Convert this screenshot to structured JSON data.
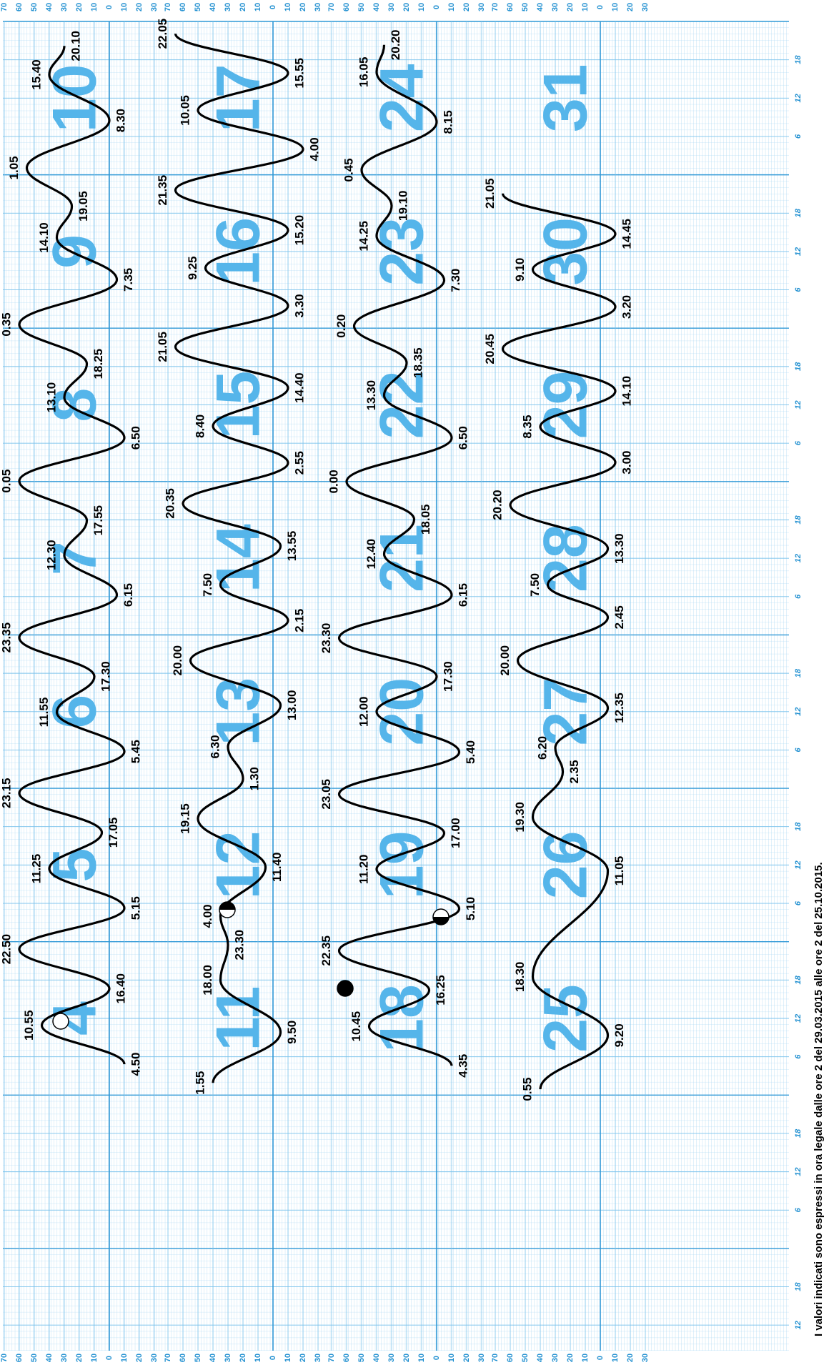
{
  "footnote": "I valori indicati sono espressi in ora legale dalle ore 2 del 29.03.2015 alle ore 2 del 25.10.2015.",
  "chart_data": [
    {
      "type": "line",
      "color": "#000000",
      "day_color": "#55b5ea",
      "xlim": [
        -40,
        168
      ],
      "ylim": [
        -30,
        70
      ],
      "yticks": [
        70,
        60,
        50,
        40,
        30,
        20,
        10,
        0,
        {
          "value": -10,
          "label": "10"
        },
        {
          "value": -20,
          "label": "20"
        },
        {
          "value": -30,
          "label": "30"
        }
      ],
      "days": [
        {
          "day": 4,
          "times": [
            "4.50",
            "10.55",
            "16.40",
            "22.50"
          ],
          "values": [
            -10,
            45,
            0,
            60
          ]
        },
        {
          "day": 5,
          "times": [
            "5.15",
            "11.25",
            "17.05",
            "23.15"
          ],
          "values": [
            -10,
            40,
            5,
            60
          ]
        },
        {
          "day": 6,
          "times": [
            "5.45",
            "11.55",
            "17.30",
            "23.35"
          ],
          "values": [
            -10,
            35,
            10,
            60
          ]
        },
        {
          "day": 7,
          "times": [
            "6.15",
            "12.30",
            "17.55"
          ],
          "values": [
            -5,
            30,
            15
          ]
        },
        {
          "day": 8,
          "times": [
            "0.05",
            "6.50",
            "13.10",
            "18.25"
          ],
          "values": [
            60,
            -10,
            30,
            15
          ]
        },
        {
          "day": 9,
          "times": [
            "0.35",
            "7.35",
            "14.10",
            "19.05"
          ],
          "values": [
            60,
            -5,
            35,
            25
          ]
        },
        {
          "day": 10,
          "times": [
            "1.05",
            "8.30",
            "15.40",
            "20.10"
          ],
          "values": [
            55,
            0,
            40,
            30
          ]
        }
      ]
    },
    {
      "type": "line",
      "color": "#000000",
      "day_color": "#55b5ea",
      "xlim": [
        -40,
        168
      ],
      "ylim": [
        -30,
        70
      ],
      "yticks": [
        70,
        60,
        50,
        40,
        30,
        20,
        10,
        0,
        {
          "value": -10,
          "label": "10"
        },
        {
          "value": -20,
          "label": "20"
        },
        {
          "value": -30,
          "label": "30"
        }
      ],
      "days": [
        {
          "day": 11,
          "times": [
            "1.55",
            "9.50",
            "18.00",
            "23.30"
          ],
          "values": [
            40,
            -5,
            35,
            30
          ]
        },
        {
          "day": 12,
          "times": [
            "4.00",
            "11.40",
            "19.15"
          ],
          "values": [
            35,
            5,
            50
          ]
        },
        {
          "day": 13,
          "times": [
            "1.30",
            "6.30",
            "13.00",
            "20.00"
          ],
          "values": [
            20,
            30,
            -5,
            55
          ]
        },
        {
          "day": 14,
          "times": [
            "2.15",
            "7.50",
            "13.55",
            "20.35"
          ],
          "values": [
            -10,
            35,
            -5,
            60
          ]
        },
        {
          "day": 15,
          "times": [
            "2.55",
            "8.40",
            "14.40",
            "21.05"
          ],
          "values": [
            -10,
            40,
            -10,
            65
          ]
        },
        {
          "day": 16,
          "times": [
            "3.30",
            "9.25",
            "15.20",
            "21.35"
          ],
          "values": [
            -10,
            45,
            -10,
            65
          ]
        },
        {
          "day": 17,
          "times": [
            "4.00",
            "10.05",
            "15.55",
            "22.05"
          ],
          "values": [
            -20,
            50,
            -10,
            65
          ]
        }
      ]
    },
    {
      "type": "line",
      "color": "#000000",
      "day_color": "#55b5ea",
      "xlim": [
        -40,
        168
      ],
      "ylim": [
        -30,
        70
      ],
      "yticks": [
        70,
        60,
        50,
        40,
        30,
        20,
        10,
        0,
        {
          "value": -10,
          "label": "10"
        },
        {
          "value": -20,
          "label": "20"
        },
        {
          "value": -30,
          "label": "30"
        }
      ],
      "days": [
        {
          "day": 18,
          "times": [
            "4.35",
            "10.45",
            "16.25",
            "22.35"
          ],
          "values": [
            -10,
            45,
            5,
            65
          ]
        },
        {
          "day": 19,
          "times": [
            "5.10",
            "11.20",
            "17.00",
            "23.05"
          ],
          "values": [
            -15,
            40,
            -5,
            65
          ]
        },
        {
          "day": 20,
          "times": [
            "5.40",
            "12.00",
            "17.30",
            "23.30"
          ],
          "values": [
            -15,
            40,
            0,
            65
          ]
        },
        {
          "day": 21,
          "times": [
            "6.15",
            "12.40",
            "18.05"
          ],
          "values": [
            -10,
            35,
            15
          ]
        },
        {
          "day": 22,
          "times": [
            "0.00",
            "6.50",
            "13.30",
            "18.35"
          ],
          "values": [
            60,
            -10,
            35,
            20
          ]
        },
        {
          "day": 23,
          "times": [
            "0.20",
            "7.30",
            "14.25",
            "19.10"
          ],
          "values": [
            55,
            -5,
            40,
            30
          ]
        },
        {
          "day": 24,
          "times": [
            "0.45",
            "8.15",
            "16.05",
            "20.20"
          ],
          "values": [
            50,
            0,
            40,
            35
          ]
        }
      ]
    },
    {
      "type": "line",
      "color": "#000000",
      "day_color": "#55b5ea",
      "xlim": [
        -40,
        168
      ],
      "ylim": [
        -30,
        70
      ],
      "yticks": [
        70,
        60,
        50,
        40,
        30,
        20,
        10,
        0,
        {
          "value": -10,
          "label": "10"
        },
        {
          "value": -20,
          "label": "20"
        },
        {
          "value": -30,
          "label": "30"
        }
      ],
      "xticks": [
        6,
        12,
        18
      ],
      "days": [
        {
          "day": 25,
          "times": [
            "0.55",
            "9.20",
            "18.30"
          ],
          "values": [
            40,
            -5,
            45
          ]
        },
        {
          "day": 26,
          "times": [
            "11.05",
            "19.30"
          ],
          "values": [
            -5,
            45
          ]
        },
        {
          "day": 27,
          "times": [
            "2.35",
            "6.20",
            "12.35",
            "20.00"
          ],
          "values": [
            25,
            30,
            -5,
            55
          ]
        },
        {
          "day": 28,
          "times": [
            "2.45",
            "7.50",
            "13.30",
            "20.20"
          ],
          "values": [
            -5,
            35,
            -5,
            60
          ]
        },
        {
          "day": 29,
          "times": [
            "3.00",
            "8.35",
            "14.10",
            "20.45"
          ],
          "values": [
            -10,
            40,
            -10,
            65
          ]
        },
        {
          "day": 30,
          "times": [
            "3.20",
            "9.10",
            "14.45",
            "21.05"
          ],
          "values": [
            -10,
            45,
            -10,
            65
          ]
        },
        {
          "day": 31,
          "times": [],
          "values": []
        }
      ]
    }
  ]
}
